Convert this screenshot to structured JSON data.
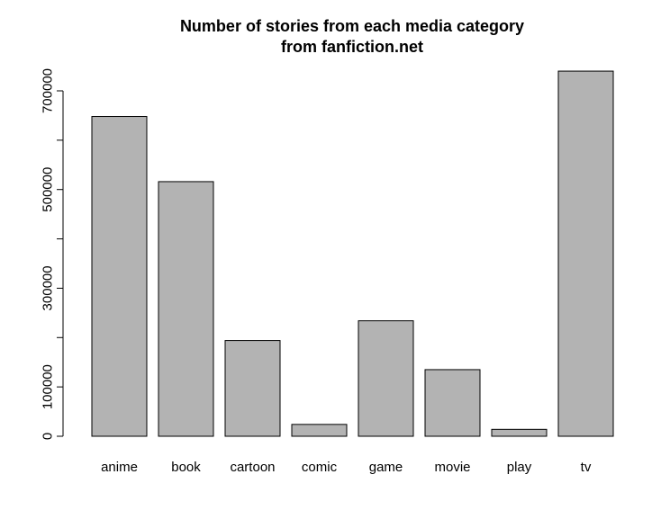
{
  "chart_data": {
    "type": "bar",
    "title": "Number of stories from each media category",
    "subtitle": "from fanfiction.net",
    "xlabel": "",
    "ylabel": "",
    "categories": [
      "anime",
      "book",
      "cartoon",
      "comic",
      "game",
      "movie",
      "play",
      "tv"
    ],
    "values": [
      648000,
      516000,
      194000,
      24000,
      234000,
      135000,
      14000,
      740000
    ],
    "yticks": [
      0,
      100000,
      200000,
      300000,
      400000,
      500000,
      600000,
      700000
    ],
    "ytick_labels": [
      "0",
      "100000",
      "",
      "300000",
      "",
      "500000",
      "",
      "700000"
    ],
    "ylim": [
      0,
      700000
    ],
    "bar_color": "#b3b3b3",
    "grid": false,
    "legend": "none"
  }
}
